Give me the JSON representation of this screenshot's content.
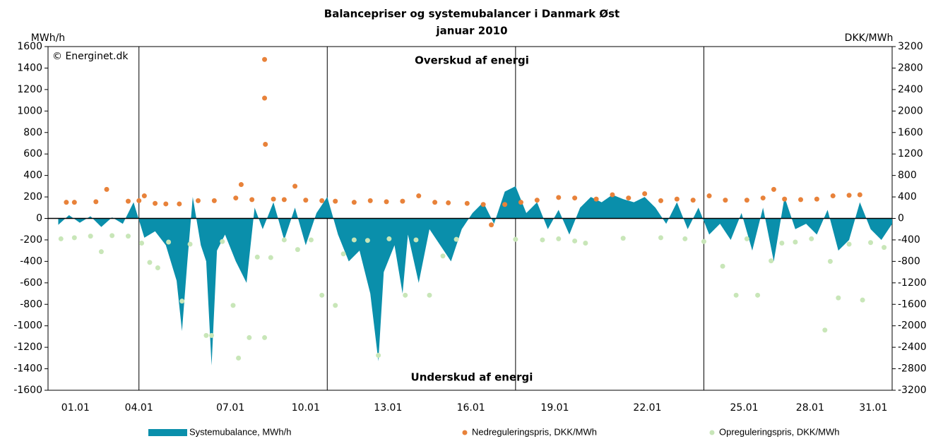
{
  "chart_data": {
    "type": "combo",
    "title": "Balancepriser og systemubalancer i Danmark Øst",
    "subtitle": "januar 2010",
    "y_label": "MWh/h",
    "y2_label": "DKK/MWh",
    "copyright": "© Energinet.dk",
    "annotations": [
      "Overskud af energi",
      "Underskud af energi"
    ],
    "xlim": [
      -0.38,
      31
    ],
    "xticks": [
      {
        "value": 0.64,
        "label": "01.01"
      },
      {
        "value": 3.0,
        "label": "04.01"
      },
      {
        "value": 6.4,
        "label": "07.01"
      },
      {
        "value": 9.2,
        "label": "10.01"
      },
      {
        "value": 12.26,
        "label": "13.01"
      },
      {
        "value": 15.34,
        "label": "16.01"
      },
      {
        "value": 18.46,
        "label": "19.01"
      },
      {
        "value": 21.9,
        "label": "22.01"
      },
      {
        "value": 25.5,
        "label": "25.01"
      },
      {
        "value": 27.95,
        "label": "28.01"
      },
      {
        "value": 30.3,
        "label": "31.01"
      }
    ],
    "xgrid": [
      3,
      10,
      17,
      24
    ],
    "ylim": [
      -1600,
      1600
    ],
    "yticks": [
      -1600,
      -1400,
      -1200,
      -1000,
      -800,
      -600,
      -400,
      -200,
      0,
      200,
      400,
      600,
      800,
      1000,
      1200,
      1400,
      1600
    ],
    "y2lim": [
      -3200,
      3200
    ],
    "y2ticks": [
      -3200,
      -2800,
      -2400,
      -2000,
      -1600,
      -1200,
      -800,
      -400,
      0,
      400,
      800,
      1200,
      1600,
      2000,
      2400,
      2800,
      3200
    ],
    "series": [
      {
        "name": "Systemubalance, MWh/h",
        "type": "area",
        "color": "#0a8fab",
        "x": [
          0,
          0.4,
          0.8,
          1.2,
          1.6,
          2.0,
          2.4,
          2.8,
          3.2,
          3.6,
          4.0,
          4.4,
          4.6,
          4.8,
          5.0,
          5.3,
          5.5,
          5.7,
          5.9,
          6.2,
          6.6,
          7.0,
          7.3,
          7.6,
          8.0,
          8.4,
          8.8,
          9.2,
          9.6,
          10.0,
          10.4,
          10.8,
          11.2,
          11.6,
          11.9,
          12.1,
          12.5,
          12.8,
          13.0,
          13.4,
          13.8,
          14.2,
          14.6,
          15.0,
          15.4,
          15.8,
          16.2,
          16.6,
          17.0,
          17.4,
          17.8,
          18.2,
          18.6,
          19.0,
          19.4,
          19.8,
          20.2,
          20.6,
          21.0,
          21.4,
          21.8,
          22.2,
          22.6,
          23.0,
          23.4,
          23.8,
          24.2,
          24.6,
          25.0,
          25.4,
          25.8,
          26.2,
          26.6,
          27.0,
          27.4,
          27.8,
          28.2,
          28.6,
          29.0,
          29.4,
          29.8,
          30.2,
          30.6,
          31.0
        ],
        "values": [
          -60,
          30,
          -40,
          20,
          -80,
          10,
          -50,
          150,
          -180,
          -120,
          -250,
          -580,
          -1050,
          -400,
          200,
          -250,
          -400,
          -1370,
          -300,
          -150,
          -400,
          -600,
          100,
          -100,
          150,
          -200,
          100,
          -250,
          50,
          200,
          -150,
          -400,
          -300,
          -700,
          -1330,
          -500,
          -250,
          -700,
          -150,
          -600,
          -100,
          -250,
          -400,
          -100,
          50,
          150,
          -50,
          250,
          300,
          50,
          150,
          -100,
          80,
          -150,
          100,
          200,
          150,
          220,
          180,
          150,
          200,
          100,
          -50,
          150,
          -100,
          100,
          -150,
          -50,
          -200,
          50,
          -300,
          100,
          -400,
          200,
          -100,
          -50,
          -150,
          80,
          -300,
          -200,
          150,
          -100,
          -200,
          -50
        ]
      },
      {
        "name": "Nedreguleringspris, DKK/MWh",
        "type": "scatter",
        "axis": "y2",
        "color": "#e8823a",
        "x": [
          0.3,
          0.6,
          1.4,
          1.8,
          2.6,
          3.0,
          3.2,
          3.6,
          4.0,
          4.5,
          5.2,
          5.8,
          6.6,
          6.8,
          7.2,
          7.67,
          7.67,
          7.7,
          8.0,
          8.4,
          8.8,
          9.2,
          9.8,
          10.3,
          11.0,
          11.6,
          12.2,
          12.8,
          13.4,
          14.0,
          14.5,
          15.2,
          15.8,
          16.1,
          16.6,
          17.2,
          17.8,
          18.6,
          19.2,
          20.0,
          20.6,
          21.2,
          21.8,
          22.4,
          23.0,
          23.6,
          24.2,
          24.8,
          25.6,
          26.2,
          26.6,
          27.0,
          27.6,
          28.2,
          28.8,
          29.4,
          29.8
        ],
        "values": [
          300,
          300,
          310,
          540,
          320,
          330,
          420,
          280,
          270,
          270,
          330,
          330,
          380,
          630,
          350,
          2960,
          2240,
          1380,
          360,
          350,
          600,
          340,
          330,
          320,
          300,
          330,
          310,
          320,
          420,
          300,
          290,
          280,
          260,
          -120,
          260,
          300,
          340,
          390,
          380,
          360,
          440,
          380,
          460,
          330,
          360,
          340,
          420,
          340,
          340,
          380,
          540,
          360,
          350,
          360,
          420,
          430,
          440
        ]
      },
      {
        "name": "Opreguleringspris, DKK/MWh",
        "type": "scatter",
        "axis": "y2",
        "color": "#c8e6b8",
        "x": [
          0.1,
          0.6,
          1.2,
          1.6,
          2.0,
          2.6,
          3.1,
          3.4,
          3.7,
          4.1,
          4.6,
          4.9,
          5.5,
          5.7,
          6.1,
          6.5,
          6.7,
          7.1,
          7.4,
          7.67,
          7.9,
          8.4,
          8.9,
          9.4,
          9.8,
          10.3,
          10.6,
          11.0,
          11.5,
          11.9,
          12.3,
          12.9,
          13.3,
          13.8,
          14.3,
          14.8,
          17.0,
          18.0,
          18.6,
          19.2,
          19.6,
          21.0,
          22.4,
          23.3,
          24.0,
          24.7,
          25.2,
          25.6,
          26.0,
          26.5,
          26.9,
          27.4,
          28.0,
          28.5,
          28.7,
          29.0,
          29.4,
          29.9,
          30.2,
          30.7
        ],
        "values": [
          -380,
          -360,
          -330,
          -620,
          -320,
          -330,
          -460,
          -820,
          -920,
          -440,
          -1540,
          -480,
          -2180,
          -2180,
          -430,
          -1620,
          -2600,
          -2220,
          -720,
          -2220,
          -730,
          -400,
          -580,
          -400,
          -1430,
          -1620,
          -660,
          -400,
          -410,
          -2550,
          -380,
          -1430,
          -400,
          -1430,
          -700,
          -390,
          -390,
          -400,
          -380,
          -420,
          -460,
          -370,
          -360,
          -380,
          -430,
          -890,
          -1430,
          -380,
          -1430,
          -790,
          -460,
          -440,
          -380,
          -2080,
          -800,
          -1480,
          -480,
          -1520,
          -450,
          -540
        ]
      }
    ]
  }
}
